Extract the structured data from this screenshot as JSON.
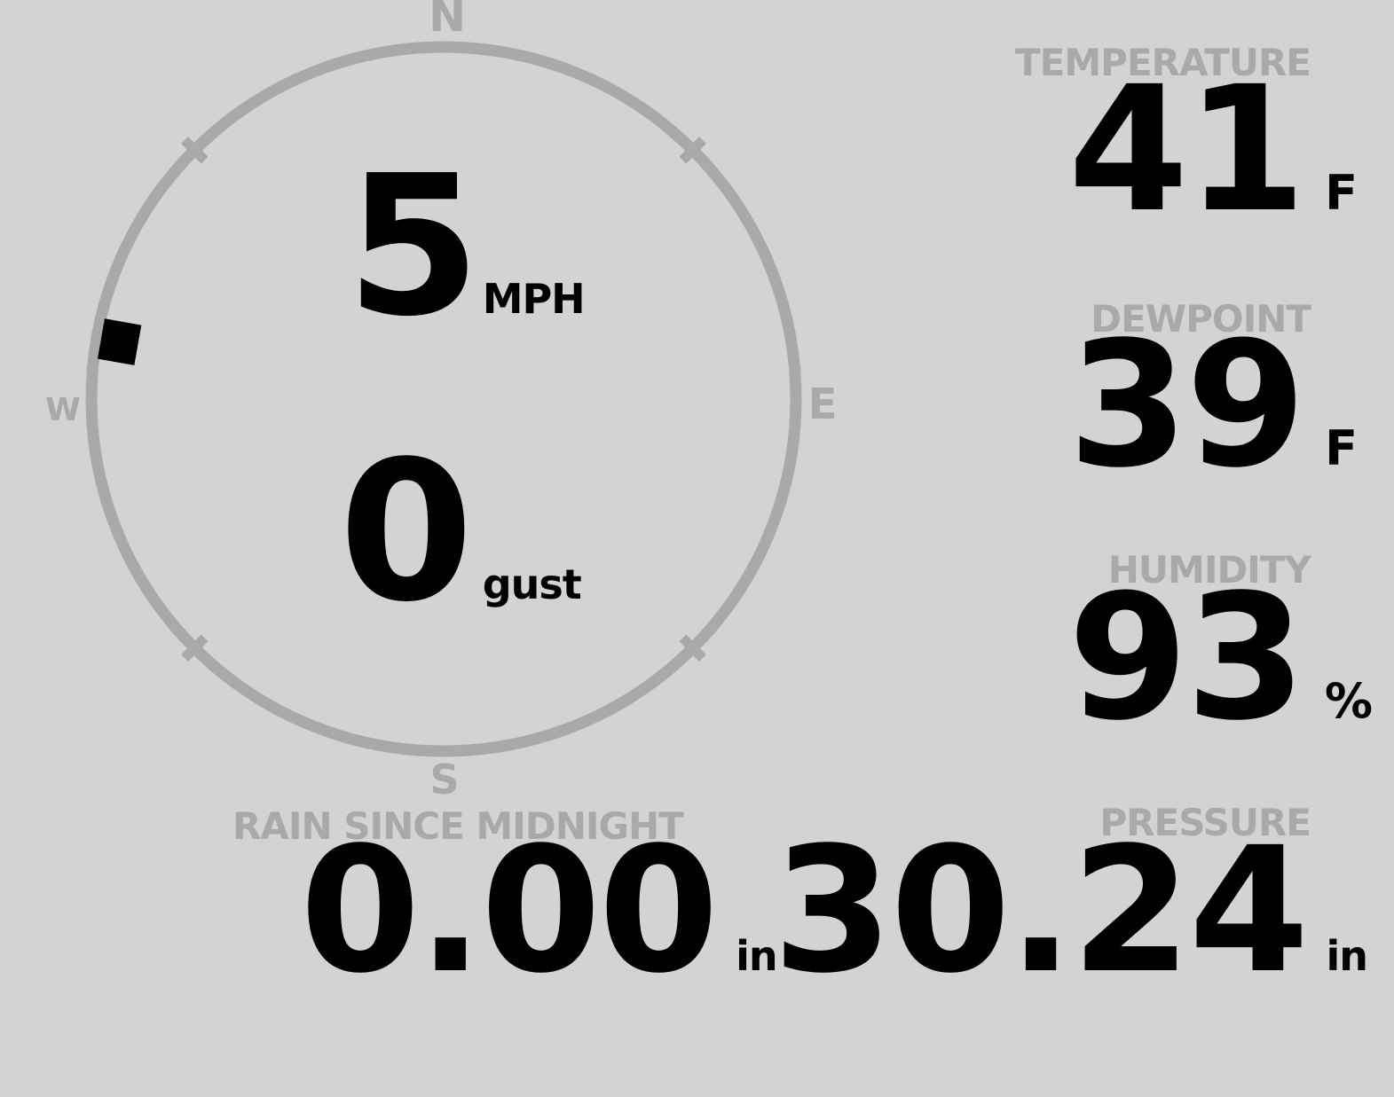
{
  "theme": {
    "background": "#d3d3d3",
    "muted_gray": "#a9a9a9",
    "value_black": "#000000"
  },
  "wind_gauge": {
    "cardinal_labels": {
      "north": "N",
      "east": "E",
      "south": "S",
      "west": "W"
    },
    "speed_value": "5",
    "speed_unit": "MPH",
    "gust_value": "0",
    "gust_unit": "gust",
    "direction_marker_bearing_deg": 280
  },
  "stats": {
    "temperature": {
      "label": "TEMPERATURE",
      "value": "41",
      "unit": "F"
    },
    "dewpoint": {
      "label": "DEWPOINT",
      "value": "39",
      "unit": "F"
    },
    "humidity": {
      "label": "HUMIDITY",
      "value": "93",
      "unit": "%"
    },
    "rain": {
      "label": "RAIN SINCE MIDNIGHT",
      "value": "0.00",
      "unit": "in"
    },
    "pressure": {
      "label": "PRESSURE",
      "value": "30.24",
      "unit": "in"
    }
  }
}
